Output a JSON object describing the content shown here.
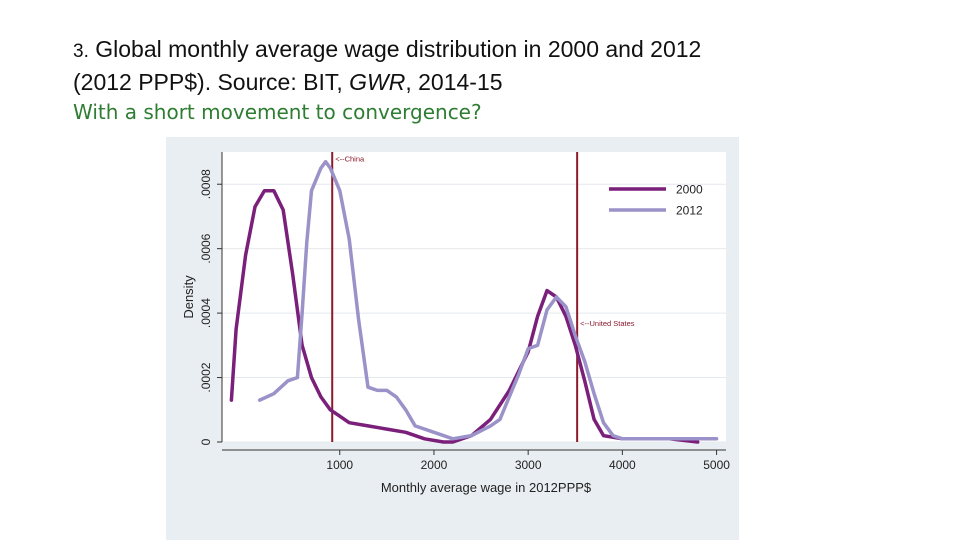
{
  "slide": {
    "title_num": "3.",
    "title_line1_rest": " Global monthly average wage distribution in 2000 and 2012",
    "title_line2_pre": "(2012 PPP$). Source: BIT, ",
    "title_line2_italic": "GWR",
    "title_line2_post": ", 2014-15",
    "subtitle": "With a short movement to convergence?"
  },
  "chart_data": {
    "type": "line",
    "title": "",
    "xlabel": "Monthly average wage in 2012PPP$",
    "ylabel": "Density",
    "xlim": [
      -250,
      5100
    ],
    "ylim": [
      0,
      0.0009
    ],
    "xticks": [
      1000,
      2000,
      3000,
      4000,
      5000
    ],
    "xtick_labels": [
      "1000",
      "2000",
      "3000",
      "4000",
      "5000"
    ],
    "yticks": [
      0,
      0.0002,
      0.0004,
      0.0006,
      0.0008
    ],
    "ytick_labels": [
      "0",
      ".0002",
      ".0004",
      ".0006",
      ".0008"
    ],
    "grid": "horizontal",
    "legend_position": "top-right",
    "series": [
      {
        "name": "2000",
        "color": "#7a1f7a",
        "points": [
          [
            -150,
            0.00013
          ],
          [
            -100,
            0.00035
          ],
          [
            0,
            0.00058
          ],
          [
            100,
            0.00073
          ],
          [
            200,
            0.00078
          ],
          [
            300,
            0.00078
          ],
          [
            400,
            0.00072
          ],
          [
            500,
            0.00052
          ],
          [
            600,
            0.0003
          ],
          [
            700,
            0.0002
          ],
          [
            800,
            0.00014
          ],
          [
            900,
            0.0001
          ],
          [
            1000,
            8e-05
          ],
          [
            1100,
            6e-05
          ],
          [
            1300,
            5e-05
          ],
          [
            1500,
            4e-05
          ],
          [
            1700,
            3e-05
          ],
          [
            1900,
            1e-05
          ],
          [
            2100,
            0.0
          ],
          [
            2200,
            0.0
          ],
          [
            2400,
            2e-05
          ],
          [
            2600,
            7e-05
          ],
          [
            2800,
            0.00016
          ],
          [
            3000,
            0.00028
          ],
          [
            3100,
            0.00039
          ],
          [
            3200,
            0.00047
          ],
          [
            3300,
            0.00045
          ],
          [
            3400,
            0.00039
          ],
          [
            3500,
            0.0003
          ],
          [
            3600,
            0.00019
          ],
          [
            3700,
            7e-05
          ],
          [
            3800,
            2e-05
          ],
          [
            4000,
            1e-05
          ],
          [
            4500,
            1e-05
          ],
          [
            4800,
            0.0
          ]
        ]
      },
      {
        "name": "2012",
        "color": "#9a92c8",
        "points": [
          [
            150,
            0.00013
          ],
          [
            300,
            0.00015
          ],
          [
            450,
            0.00019
          ],
          [
            550,
            0.0002
          ],
          [
            600,
            0.0004
          ],
          [
            650,
            0.00062
          ],
          [
            700,
            0.00078
          ],
          [
            800,
            0.00085
          ],
          [
            850,
            0.00087
          ],
          [
            900,
            0.00085
          ],
          [
            1000,
            0.00078
          ],
          [
            1100,
            0.00063
          ],
          [
            1200,
            0.00038
          ],
          [
            1300,
            0.00017
          ],
          [
            1400,
            0.00016
          ],
          [
            1500,
            0.00016
          ],
          [
            1600,
            0.00014
          ],
          [
            1700,
            0.0001
          ],
          [
            1800,
            5e-05
          ],
          [
            2000,
            3e-05
          ],
          [
            2200,
            1e-05
          ],
          [
            2400,
            2e-05
          ],
          [
            2600,
            5e-05
          ],
          [
            2700,
            7e-05
          ],
          [
            2900,
            0.00021
          ],
          [
            3000,
            0.00029
          ],
          [
            3100,
            0.0003
          ],
          [
            3200,
            0.00041
          ],
          [
            3300,
            0.00045
          ],
          [
            3400,
            0.00042
          ],
          [
            3500,
            0.00033
          ],
          [
            3600,
            0.00025
          ],
          [
            3700,
            0.00015
          ],
          [
            3800,
            6e-05
          ],
          [
            3900,
            2e-05
          ],
          [
            4000,
            1e-05
          ],
          [
            4500,
            1e-05
          ],
          [
            5000,
            1e-05
          ]
        ]
      }
    ],
    "reference_lines": [
      {
        "x": 920,
        "label": "<--China",
        "label_y": 0.00087,
        "color": "#8b1a2b"
      },
      {
        "x": 3520,
        "label": "<--United States",
        "label_y": 0.00036,
        "color": "#8b1a2b"
      }
    ]
  }
}
